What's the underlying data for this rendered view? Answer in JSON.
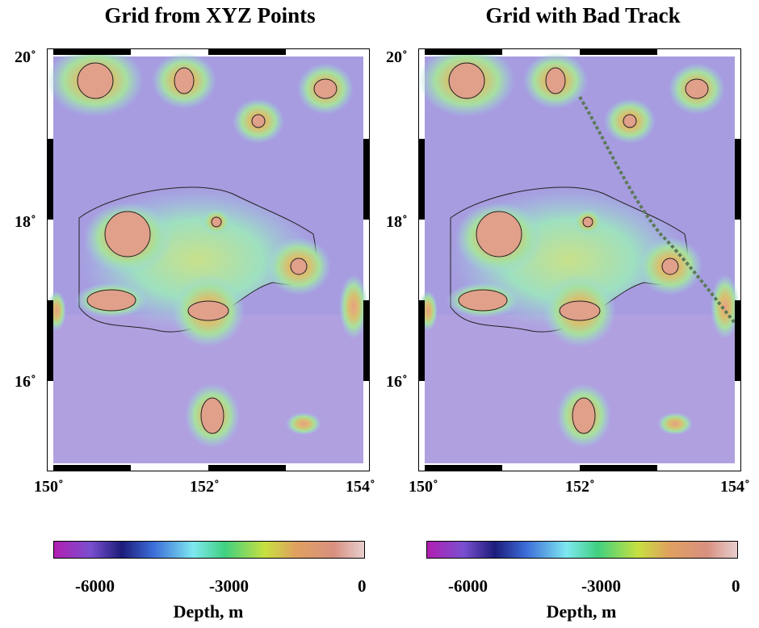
{
  "panels": [
    {
      "title": "Grid from XYZ Points",
      "lat_labels": [
        "20˚",
        "18˚",
        "16˚"
      ],
      "lon_labels": [
        "150˚",
        "152˚",
        "154˚"
      ],
      "colorbar": {
        "ticks": [
          "-6000",
          "-3000",
          "0"
        ],
        "label": "Depth, m"
      }
    },
    {
      "title": "Grid with Bad Track",
      "lat_labels": [
        "20˚",
        "18˚",
        "16˚"
      ],
      "lon_labels": [
        "150˚",
        "152˚",
        "154˚"
      ],
      "colorbar": {
        "ticks": [
          "-6000",
          "-3000",
          "0"
        ],
        "label": "Depth, m"
      }
    }
  ],
  "colors": {
    "deep": "#9a8fe0",
    "abyss": "#a79ad6",
    "mid": "#8fd6d2",
    "shallow": "#c7e07a",
    "peak": "#e0a38a",
    "track": "#5c7a58"
  },
  "colormap": [
    "#b21eb0",
    "#7a4fd0",
    "#1c1c7a",
    "#3c6cd8",
    "#7ee8f0",
    "#40d080",
    "#c8e040",
    "#e0a060",
    "#d89080",
    "#e8d0d0"
  ]
}
